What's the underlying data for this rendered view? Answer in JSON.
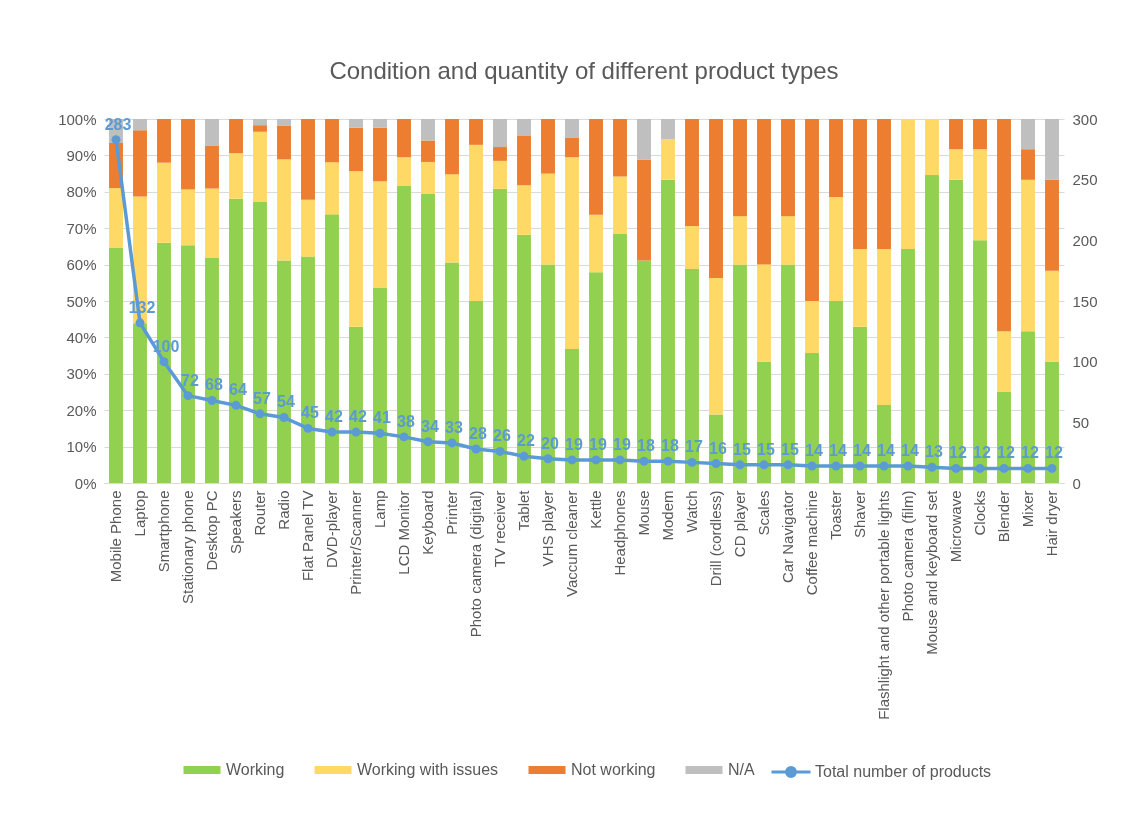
{
  "chart_data": {
    "type": "bar",
    "stacked": true,
    "title": "Condition and quantity of different product types",
    "categories": [
      "Mobile Phone",
      "Laptop",
      "Smartphone",
      "Stationary phone",
      "Desktop PC",
      "Speakers",
      "Router",
      "Radio",
      "Flat Panel TV",
      "DVD-player",
      "Printer/Scanner",
      "Lamp",
      "LCD Monitor",
      "Keyboard",
      "Printer",
      "Photo camera (digital)",
      "TV receiver",
      "Tablet",
      "VHS player",
      "Vaccum cleaner",
      "Kettle",
      "Headphones",
      "Mouse",
      "Modem",
      "Watch",
      "Drill (cordless)",
      "CD player",
      "Scales",
      "Car Navigator",
      "Coffee machine",
      "Toaster",
      "Shaver",
      "Flashlight and other portable lights",
      "Photo camera (film)",
      "Mouse and keyboard set",
      "Microwave",
      "Clocks",
      "Blender",
      "Mixer",
      "Hair dryer"
    ],
    "series": [
      {
        "name": "Working",
        "color": "#92d050",
        "values": [
          64.7,
          43.9,
          66,
          65.3,
          61.8,
          78.1,
          77.2,
          61.1,
          62.2,
          73.8,
          42.9,
          53.7,
          81.6,
          79.4,
          60.6,
          50,
          80.8,
          68.2,
          60,
          36.8,
          57.9,
          68.4,
          61.1,
          83.3,
          58.8,
          18.8,
          60,
          33.3,
          60,
          35.7,
          50,
          42.9,
          21.4,
          64.3,
          84.6,
          83.3,
          66.7,
          25,
          41.7,
          33.3
        ]
      },
      {
        "name": "Working with issues",
        "color": "#ffd966",
        "values": [
          16.3,
          34.8,
          22,
          15.3,
          19.1,
          12.5,
          19.3,
          27.8,
          15.6,
          14.3,
          42.8,
          29.2,
          7.9,
          8.8,
          24.2,
          42.9,
          7.7,
          13.6,
          25,
          52.7,
          15.8,
          15.8,
          0,
          11.1,
          11.8,
          37.5,
          13.3,
          26.7,
          13.3,
          14.3,
          28.6,
          21.4,
          42.9,
          35.7,
          15.4,
          8.4,
          25,
          16.7,
          41.6,
          25
        ]
      },
      {
        "name": "Not working",
        "color": "#ed7d31",
        "values": [
          12.4,
          18.2,
          12,
          19.4,
          11.7,
          9.4,
          1.8,
          9.2,
          22.2,
          11.9,
          11.9,
          14.7,
          10.5,
          5.9,
          15.2,
          7.1,
          3.8,
          13.7,
          15,
          5.3,
          26.3,
          15.8,
          27.8,
          0,
          29.4,
          43.7,
          26.7,
          40,
          26.7,
          50,
          21.4,
          35.7,
          35.7,
          0,
          0,
          8.3,
          8.3,
          58.3,
          8.4,
          25
        ]
      },
      {
        "name": "N/A",
        "color": "#bfbfbf",
        "values": [
          6.6,
          3.1,
          0,
          0,
          7.4,
          0,
          1.7,
          1.9,
          0,
          0,
          2.4,
          2.4,
          0,
          5.9,
          0,
          0,
          7.7,
          4.5,
          0,
          5.2,
          0,
          0,
          11.1,
          5.6,
          0,
          0,
          0,
          0,
          0,
          0,
          0,
          0,
          0,
          0,
          0,
          0,
          0,
          0,
          8.3,
          16.7
        ]
      },
      {
        "name": "Total number of products",
        "type": "line",
        "axis": "y2",
        "color": "#5b9bd5",
        "marker": "circle",
        "line_style": "solid",
        "data_labels": true,
        "values": [
          283,
          132,
          100,
          72,
          68,
          64,
          57,
          54,
          45,
          42,
          42,
          41,
          38,
          34,
          33,
          28,
          26,
          22,
          20,
          19,
          19,
          19,
          18,
          18,
          17,
          16,
          15,
          15,
          15,
          14,
          14,
          14,
          14,
          14,
          13,
          12,
          12,
          12,
          12,
          12
        ]
      }
    ],
    "ylim": [
      0,
      100
    ],
    "yticks": [
      {
        "value": 0,
        "label": "0%"
      },
      {
        "value": 10,
        "label": "10%"
      },
      {
        "value": 20,
        "label": "20%"
      },
      {
        "value": 30,
        "label": "30%"
      },
      {
        "value": 40,
        "label": "40%"
      },
      {
        "value": 50,
        "label": "50%"
      },
      {
        "value": 60,
        "label": "60%"
      },
      {
        "value": 70,
        "label": "70%"
      },
      {
        "value": 80,
        "label": "80%"
      },
      {
        "value": 90,
        "label": "90%"
      },
      {
        "value": 100,
        "label": "100%"
      }
    ],
    "y2lim": [
      0,
      300
    ],
    "y2ticks": [
      0,
      50,
      100,
      150,
      200,
      250,
      300
    ],
    "grid": "y",
    "legend": "bottom"
  }
}
